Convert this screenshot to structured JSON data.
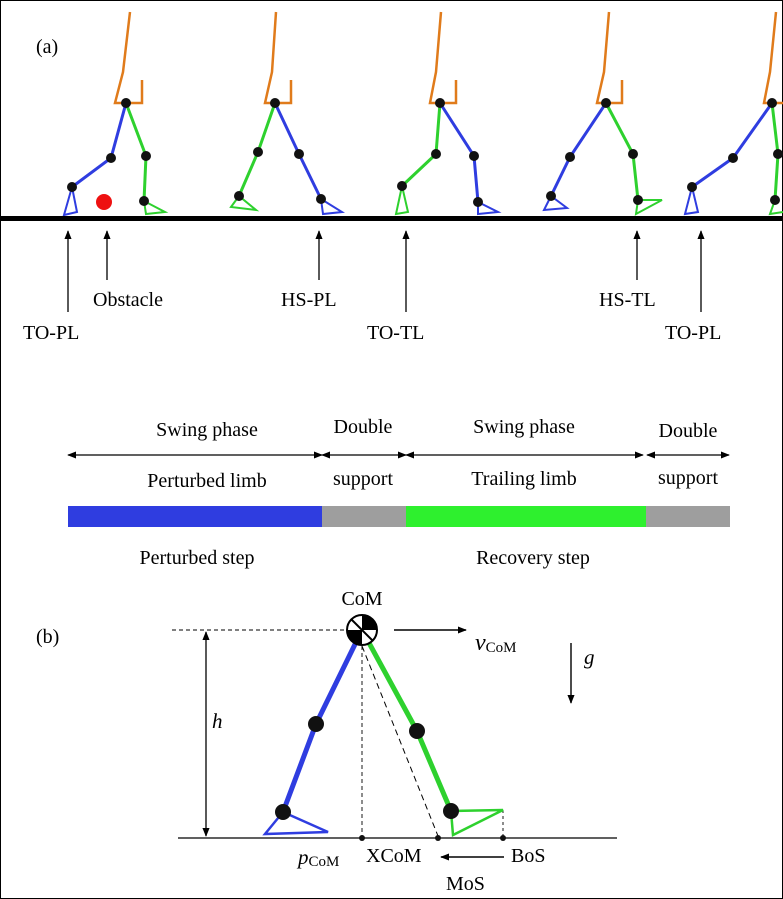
{
  "panel_a": {
    "label": "(a)",
    "events": {
      "to_pl_1": "TO-PL",
      "obstacle": "Obstacle",
      "hs_pl": "HS-PL",
      "to_tl": "TO-TL",
      "hs_tl": "HS-TL",
      "to_pl_2": "TO-PL"
    },
    "phases": {
      "swing_pl_top": "Swing phase",
      "swing_pl_bottom": "Perturbed limb",
      "double1_top": "Double",
      "double1_bottom": "support",
      "swing_tl_top": "Swing phase",
      "swing_tl_bottom": "Trailing limb",
      "double2_top": "Double",
      "double2_bottom": "support"
    },
    "steps": {
      "perturbed": "Perturbed step",
      "recovery": "Recovery step"
    },
    "colors": {
      "perturbed_limb": "#2f3de0",
      "trailing_limb": "#2ed12e",
      "trunk": "#e07b1b",
      "obstacle": "#ee1111",
      "double_support": "#9e9e9e"
    }
  },
  "panel_b": {
    "label": "(b)",
    "com": "CoM",
    "v": "v",
    "v_sub": "CoM",
    "g": "g",
    "h": "h",
    "p": "p",
    "p_sub": "CoM",
    "xcom": "XCoM",
    "bos": "BoS",
    "mos": "MoS"
  }
}
